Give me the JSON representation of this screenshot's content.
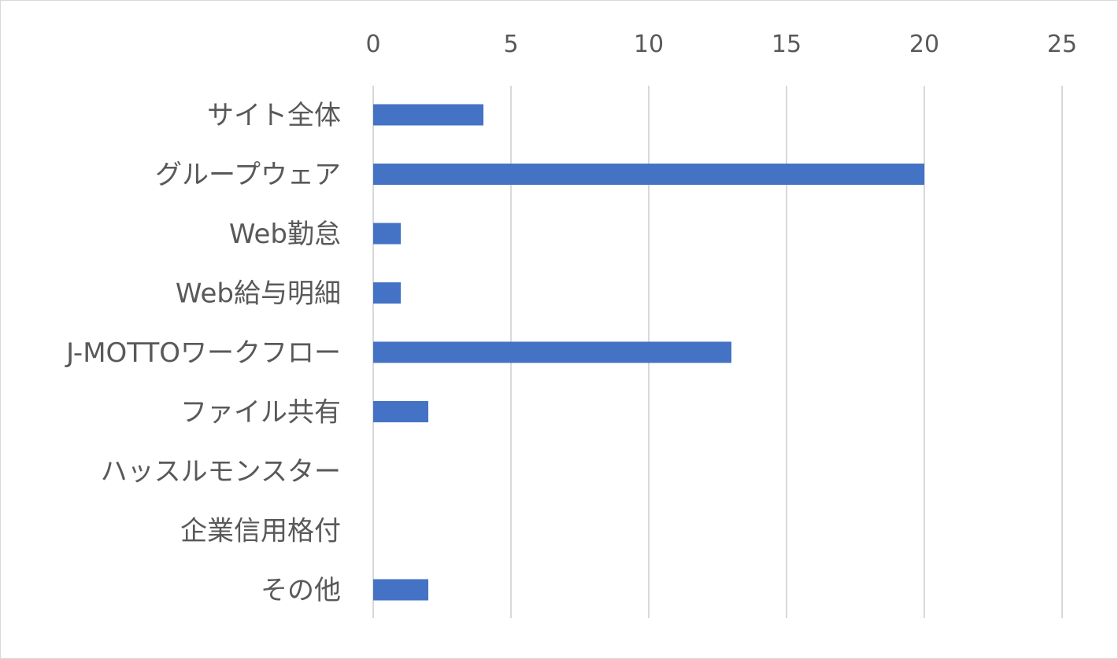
{
  "chart_data": {
    "type": "bar",
    "orientation": "horizontal",
    "categories": [
      "サイト全体",
      "グループウェア",
      "Web勤怠",
      "Web給与明細",
      "J-MOTTOワークフロー",
      "ファイル共有",
      "ハッスルモンスター",
      "企業信用格付",
      "その他"
    ],
    "series": [
      {
        "values": [
          4,
          20,
          1,
          1,
          13,
          2,
          0,
          0,
          2
        ]
      }
    ],
    "x_ticks": [
      "0",
      "5",
      "10",
      "15",
      "20",
      "25"
    ],
    "xlim": [
      0,
      25
    ],
    "x_axis_position": "top",
    "grid": "vertical",
    "legend": "none",
    "title": "",
    "xlabel": "",
    "ylabel": "",
    "bar_color": "#4472c4",
    "grid_color": "#d9d9d9",
    "text_color": "#595959"
  }
}
